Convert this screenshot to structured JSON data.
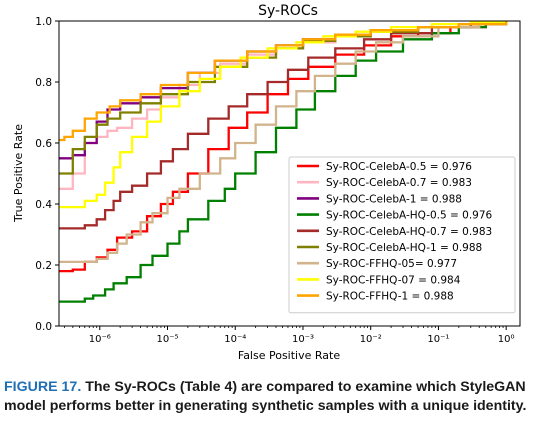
{
  "figure": {
    "label": "FIGURE 17.",
    "caption": "The Sy-ROCs (Table 4) are compared to examine which StyleGAN model performs better in generating synthetic samples with a unique identity."
  },
  "chart_data": {
    "type": "line",
    "title": "Sy-ROCs",
    "xlabel": "False Positive Rate",
    "ylabel": "True Positive Rate",
    "xscale": "log",
    "xlim": [
      2.5e-07,
      1.6
    ],
    "ylim": [
      0,
      1
    ],
    "xticks": [
      {
        "value": 1e-06,
        "label": "10⁻⁶"
      },
      {
        "value": 1e-05,
        "label": "10⁻⁵"
      },
      {
        "value": 0.0001,
        "label": "10⁻⁴"
      },
      {
        "value": 0.001,
        "label": "10⁻³"
      },
      {
        "value": 0.01,
        "label": "10⁻²"
      },
      {
        "value": 0.1,
        "label": "10⁻¹"
      },
      {
        "value": 1,
        "label": "10⁰"
      }
    ],
    "yticks": [
      {
        "value": 0.0,
        "label": "0.0"
      },
      {
        "value": 0.2,
        "label": "0.2"
      },
      {
        "value": 0.4,
        "label": "0.4"
      },
      {
        "value": 0.6,
        "label": "0.6"
      },
      {
        "value": 0.8,
        "label": "0.8"
      },
      {
        "value": 1.0,
        "label": "1.0"
      }
    ],
    "grid": false,
    "legend_position": "lower-right",
    "series": [
      {
        "name": "Sy-ROC-CelebA-0.5 = 0.976",
        "color": "#ff0000",
        "x": [
          2.5e-07,
          4e-07,
          6e-07,
          9e-07,
          1.3e-06,
          1.8e-06,
          3e-06,
          5e-06,
          8e-06,
          1.2e-05,
          2e-05,
          4e-05,
          8e-05,
          0.00015,
          0.0003,
          0.0006,
          0.0012,
          0.003,
          0.008,
          0.02,
          0.05,
          0.15,
          0.5,
          1
        ],
        "y": [
          0.18,
          0.185,
          0.21,
          0.225,
          0.25,
          0.29,
          0.31,
          0.36,
          0.4,
          0.44,
          0.5,
          0.58,
          0.65,
          0.7,
          0.76,
          0.81,
          0.85,
          0.89,
          0.92,
          0.95,
          0.96,
          0.98,
          0.99,
          1.0
        ]
      },
      {
        "name": "Sy-ROC-CelebA-0.7 = 0.983",
        "color": "#ffb6c1",
        "x": [
          2.5e-07,
          4e-07,
          6e-07,
          9e-07,
          1.3e-06,
          1.8e-06,
          3e-06,
          5e-06,
          8e-06,
          1.5e-05,
          3e-05,
          6e-05,
          0.00015,
          0.0004,
          0.001,
          0.003,
          0.01,
          0.05,
          0.2,
          1
        ],
        "y": [
          0.45,
          0.5,
          0.6,
          0.62,
          0.64,
          0.65,
          0.68,
          0.71,
          0.75,
          0.79,
          0.83,
          0.86,
          0.89,
          0.91,
          0.93,
          0.95,
          0.965,
          0.98,
          0.99,
          1.0
        ]
      },
      {
        "name": "Sy-ROC-CelebA-1 = 0.988",
        "color": "#800080",
        "x": [
          2.5e-07,
          4e-07,
          6e-07,
          9e-07,
          1.3e-06,
          2e-06,
          4e-06,
          8e-06,
          2e-05,
          5e-05,
          0.00015,
          0.0004,
          0.001,
          0.003,
          0.01,
          0.05,
          0.2,
          1
        ],
        "y": [
          0.55,
          0.56,
          0.6,
          0.67,
          0.71,
          0.73,
          0.75,
          0.78,
          0.83,
          0.87,
          0.9,
          0.92,
          0.94,
          0.955,
          0.97,
          0.98,
          0.99,
          1.0
        ]
      },
      {
        "name": "Sy-ROC-CelebA-HQ-0.5 = 0.976",
        "color": "#008000",
        "x": [
          2.5e-07,
          6e-07,
          8e-07,
          1.2e-06,
          1.6e-06,
          2.5e-06,
          4e-06,
          6e-06,
          1e-05,
          1.5e-05,
          2e-05,
          4e-05,
          7e-05,
          0.0001,
          0.0002,
          0.0004,
          0.0008,
          0.0015,
          0.003,
          0.006,
          0.012,
          0.03,
          0.08,
          0.2,
          0.5,
          1
        ],
        "y": [
          0.08,
          0.09,
          0.1,
          0.12,
          0.14,
          0.16,
          0.2,
          0.23,
          0.27,
          0.31,
          0.35,
          0.41,
          0.45,
          0.5,
          0.57,
          0.65,
          0.71,
          0.77,
          0.82,
          0.87,
          0.9,
          0.94,
          0.96,
          0.98,
          0.99,
          1.0
        ]
      },
      {
        "name": "Sy-ROC-CelebA-HQ-0.7 = 0.983",
        "color": "#a52a2a",
        "x": [
          2.5e-07,
          6e-07,
          9e-07,
          1.2e-06,
          1.6e-06,
          2e-06,
          3e-06,
          5e-06,
          8e-06,
          1.2e-05,
          2e-05,
          4e-05,
          8e-05,
          0.00015,
          0.0003,
          0.0006,
          0.0012,
          0.003,
          0.008,
          0.02,
          0.08,
          0.3,
          1
        ],
        "y": [
          0.32,
          0.33,
          0.35,
          0.38,
          0.41,
          0.44,
          0.46,
          0.5,
          0.54,
          0.58,
          0.63,
          0.68,
          0.72,
          0.76,
          0.8,
          0.84,
          0.88,
          0.91,
          0.94,
          0.96,
          0.98,
          0.99,
          1.0
        ]
      },
      {
        "name": "Sy-ROC-CelebA-HQ-1 = 0.988",
        "color": "#808000",
        "x": [
          2.5e-07,
          4e-07,
          6e-07,
          9e-07,
          1.3e-06,
          2e-06,
          4e-06,
          8e-06,
          2e-05,
          5e-05,
          0.00015,
          0.0004,
          0.001,
          0.003,
          0.01,
          0.05,
          0.2,
          1
        ],
        "y": [
          0.5,
          0.58,
          0.62,
          0.66,
          0.68,
          0.7,
          0.73,
          0.76,
          0.8,
          0.85,
          0.88,
          0.91,
          0.935,
          0.95,
          0.965,
          0.98,
          0.99,
          1.0
        ]
      },
      {
        "name": "Sy-ROC-FFHQ-05= 0.977",
        "color": "#d2b48c",
        "x": [
          2.5e-07,
          6e-07,
          9e-07,
          1.3e-06,
          1.8e-06,
          2.5e-06,
          4e-06,
          6e-06,
          1e-05,
          1.5e-05,
          3e-05,
          6e-05,
          0.0001,
          0.0002,
          0.0004,
          0.0008,
          0.0015,
          0.003,
          0.006,
          0.012,
          0.03,
          0.1,
          0.4,
          1
        ],
        "y": [
          0.21,
          0.21,
          0.22,
          0.24,
          0.27,
          0.3,
          0.34,
          0.37,
          0.42,
          0.45,
          0.5,
          0.55,
          0.6,
          0.66,
          0.72,
          0.77,
          0.82,
          0.86,
          0.9,
          0.93,
          0.95,
          0.98,
          0.99,
          1.0
        ]
      },
      {
        "name": "Sy-ROC-FFHQ-07 = 0.984",
        "color": "#ffff00",
        "x": [
          2.5e-07,
          6e-07,
          9e-07,
          1.2e-06,
          1.6e-06,
          2e-06,
          3e-06,
          5e-06,
          8e-06,
          1.5e-05,
          3e-05,
          6e-05,
          0.00012,
          0.0003,
          0.0008,
          0.002,
          0.006,
          0.02,
          0.08,
          0.3,
          1
        ],
        "y": [
          0.39,
          0.41,
          0.43,
          0.47,
          0.52,
          0.57,
          0.62,
          0.67,
          0.72,
          0.77,
          0.81,
          0.85,
          0.88,
          0.91,
          0.93,
          0.95,
          0.965,
          0.98,
          0.99,
          0.995,
          1.0
        ]
      },
      {
        "name": "Sy-ROC-FFHQ-1 = 0.988",
        "color": "#ffa500",
        "x": [
          2.5e-07,
          3e-07,
          4e-07,
          6e-07,
          9e-07,
          1.4e-06,
          2e-06,
          4e-06,
          8e-06,
          2e-05,
          5e-05,
          0.00015,
          0.0004,
          0.001,
          0.003,
          0.01,
          0.05,
          0.2,
          1
        ],
        "y": [
          0.61,
          0.62,
          0.64,
          0.68,
          0.7,
          0.72,
          0.74,
          0.76,
          0.79,
          0.83,
          0.87,
          0.9,
          0.92,
          0.94,
          0.955,
          0.97,
          0.98,
          0.99,
          1.0
        ]
      }
    ]
  }
}
